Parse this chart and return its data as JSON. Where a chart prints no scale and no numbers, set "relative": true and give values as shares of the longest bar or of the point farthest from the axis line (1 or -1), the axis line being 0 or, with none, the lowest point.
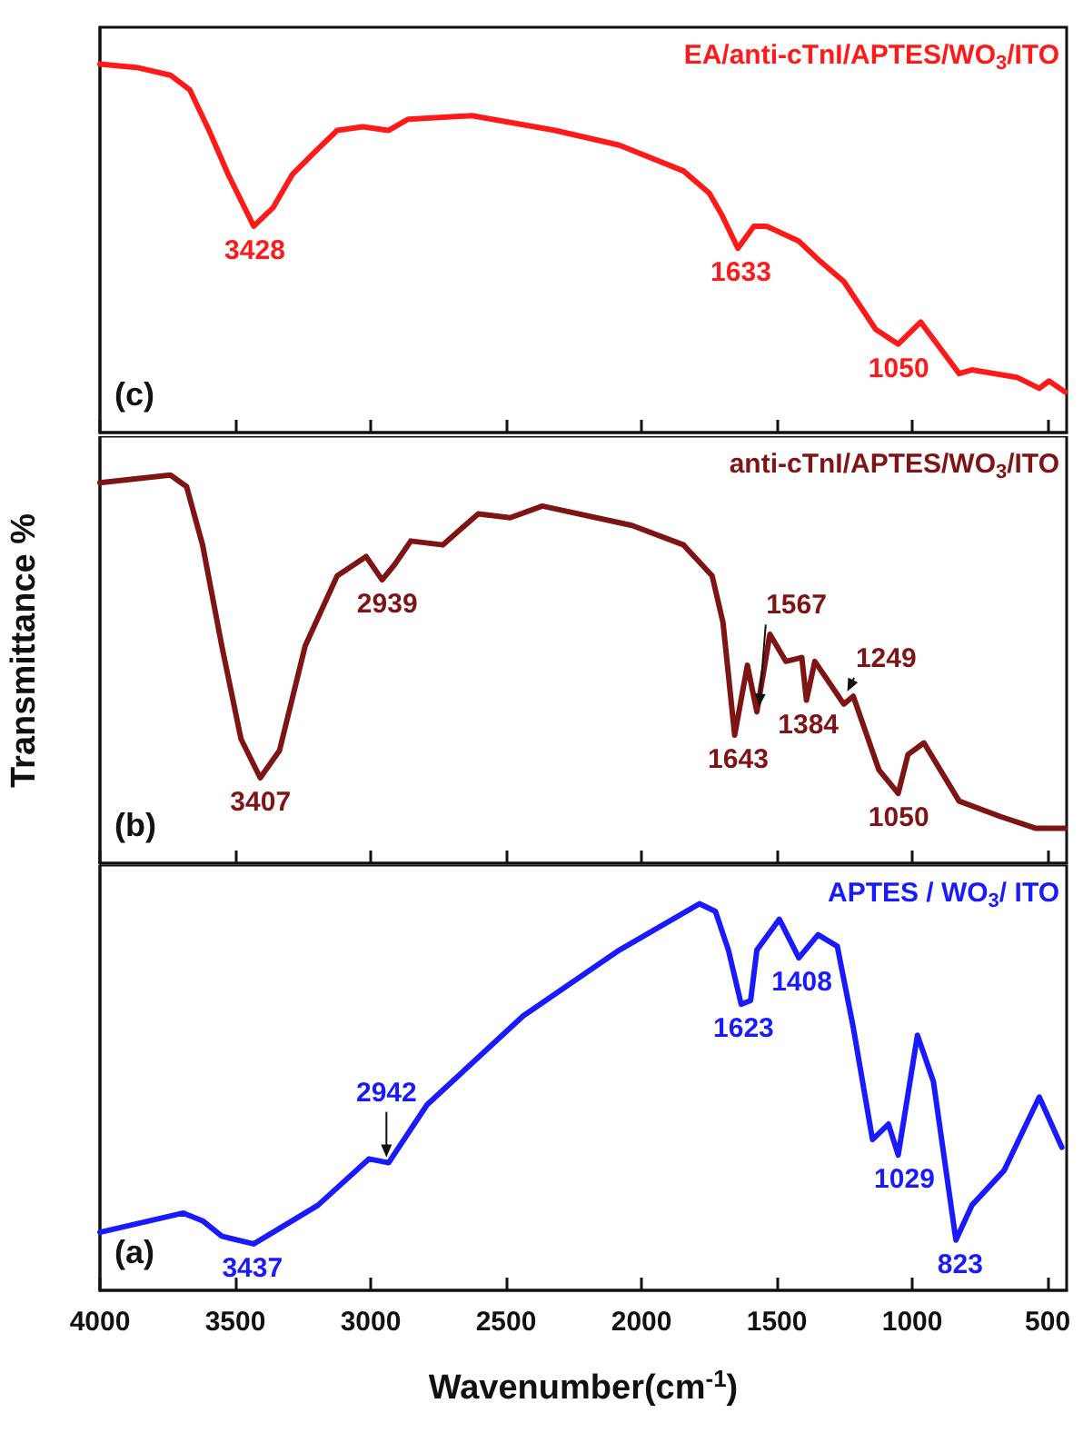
{
  "chart_data": [
    {
      "type": "line",
      "relative": true,
      "xlim": [
        4000,
        430
      ],
      "xticks": [
        4000,
        3500,
        3000,
        2500,
        2000,
        1500,
        1000,
        500
      ],
      "tick_labels": false,
      "x": [
        4000,
        3858,
        3740,
        3668,
        3597,
        3526,
        3432,
        3361,
        3290,
        3195,
        3124,
        3029,
        2935,
        2863,
        2627,
        2319,
        2082,
        1845,
        1750,
        1703,
        1644,
        1585,
        1538,
        1420,
        1348,
        1253,
        1135,
        1052,
        969,
        898,
        827,
        780,
        614,
        531,
        495,
        436
      ],
      "series": [
        {
          "name": "EA/anti-cTnI/APTES/WO$_{3}$/ITO",
          "color": "#ff1a1a",
          "values": [
            1.0,
            0.99,
            0.97,
            0.93,
            0.82,
            0.7,
            0.56,
            0.61,
            0.7,
            0.77,
            0.82,
            0.83,
            0.82,
            0.85,
            0.86,
            0.82,
            0.78,
            0.71,
            0.65,
            0.59,
            0.5,
            0.56,
            0.56,
            0.52,
            0.47,
            0.41,
            0.28,
            0.24,
            0.3,
            0.23,
            0.16,
            0.17,
            0.15,
            0.12,
            0.14,
            0.11
          ]
        }
      ],
      "annotations": [
        "(c)",
        {
          "text": "3428",
          "x": 3428,
          "y": 0.56
        },
        {
          "text": "1633",
          "x": 1633,
          "y": 0.5
        },
        {
          "text": "1050",
          "x": 1050,
          "y": 0.24
        }
      ]
    },
    {
      "type": "line",
      "relative": true,
      "xlim": [
        4000,
        430
      ],
      "xticks": [
        4000,
        3500,
        3000,
        2500,
        2000,
        1500,
        1000,
        500
      ],
      "tick_labels": false,
      "ylabel": "Transmittance %",
      "x": [
        4000,
        3740,
        3680,
        3621,
        3550,
        3479,
        3408,
        3337,
        3242,
        3124,
        3017,
        2958,
        2911,
        2852,
        2734,
        2603,
        2485,
        2366,
        2035,
        1845,
        1739,
        1699,
        1656,
        1609,
        1574,
        1526,
        1467,
        1408,
        1391,
        1360,
        1253,
        1218,
        1123,
        1052,
        1016,
        957,
        827,
        673,
        543,
        436
      ],
      "series": [
        {
          "name": "anti-cTnI/APTES/WO$_{3}$/ITO",
          "color": "#7f1414",
          "values": [
            0.98,
            1.0,
            0.97,
            0.82,
            0.56,
            0.32,
            0.22,
            0.29,
            0.56,
            0.74,
            0.79,
            0.73,
            0.77,
            0.83,
            0.82,
            0.9,
            0.89,
            0.92,
            0.87,
            0.82,
            0.74,
            0.62,
            0.33,
            0.51,
            0.39,
            0.59,
            0.52,
            0.53,
            0.42,
            0.52,
            0.41,
            0.43,
            0.24,
            0.18,
            0.28,
            0.31,
            0.16,
            0.12,
            0.09,
            0.09
          ]
        }
      ],
      "annotations": [
        "(b)",
        {
          "text": "3407",
          "x": 3407,
          "y": 0.22
        },
        {
          "text": "2939",
          "x": 2939,
          "y": 0.73
        },
        {
          "text": "1643",
          "x": 1643,
          "y": 0.33
        },
        {
          "text": "1567",
          "x": 1567,
          "y": 0.39
        },
        {
          "text": "1384",
          "x": 1384,
          "y": 0.42
        },
        {
          "text": "1249",
          "x": 1249,
          "y": 0.43
        },
        {
          "text": "1050",
          "x": 1050,
          "y": 0.18
        }
      ]
    },
    {
      "type": "line",
      "relative": true,
      "xlim": [
        4000,
        430
      ],
      "xticks": [
        4000,
        3500,
        3000,
        2500,
        2000,
        1500,
        1000,
        500
      ],
      "tick_labels": "x",
      "xlabel": "Wavenumber(cm$^{-1}$)",
      "x": [
        4000,
        3692,
        3621,
        3550,
        3432,
        3337,
        3195,
        3006,
        2934,
        2792,
        2437,
        2082,
        1786,
        1727,
        1679,
        1632,
        1597,
        1574,
        1491,
        1419,
        1348,
        1277,
        1218,
        1147,
        1088,
        1052,
        981,
        922,
        839,
        780,
        661,
        531,
        448
      ],
      "series": [
        {
          "name": "APTES / WO$_{3}$/ ITO",
          "color": "#1a1aff",
          "values": [
            0.15,
            0.2,
            0.18,
            0.14,
            0.12,
            0.16,
            0.22,
            0.34,
            0.33,
            0.48,
            0.71,
            0.88,
            1.0,
            0.98,
            0.88,
            0.74,
            0.75,
            0.88,
            0.96,
            0.86,
            0.92,
            0.89,
            0.68,
            0.39,
            0.43,
            0.35,
            0.66,
            0.54,
            0.13,
            0.22,
            0.31,
            0.5,
            0.37
          ]
        }
      ],
      "annotations": [
        "(a)",
        {
          "text": "3437",
          "x": 3437,
          "y": 0.12
        },
        {
          "text": "2942",
          "x": 2942,
          "y": 0.33
        },
        {
          "text": "1623",
          "x": 1623,
          "y": 0.74
        },
        {
          "text": "1408",
          "x": 1408,
          "y": 0.86
        },
        {
          "text": "1029",
          "x": 1029,
          "y": 0.35
        },
        {
          "text": "823",
          "x": 823,
          "y": 0.13
        }
      ]
    }
  ]
}
